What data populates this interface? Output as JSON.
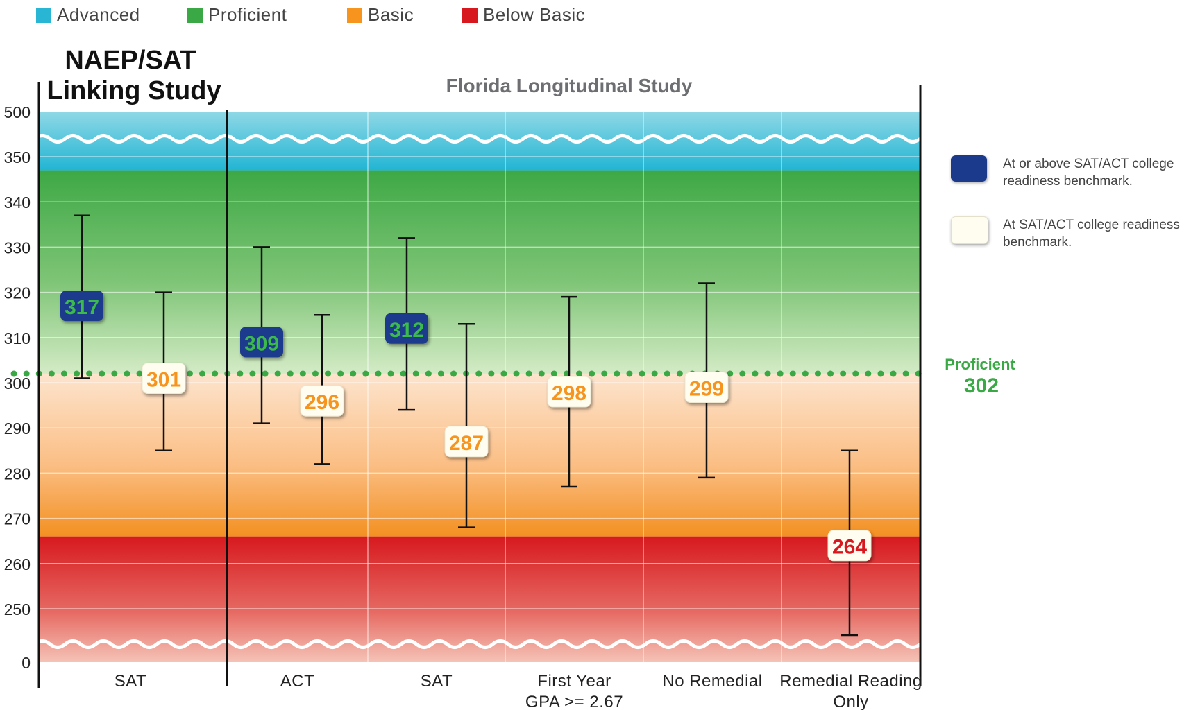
{
  "category_legend": [
    {
      "label": "Advanced",
      "color": "#29b6d4"
    },
    {
      "label": "Proficient",
      "color": "#3aa845"
    },
    {
      "label": "Basic",
      "color": "#f7941d"
    },
    {
      "label": "Below Basic",
      "color": "#d7191f"
    }
  ],
  "marker_legend": [
    {
      "label": "At or above SAT/ACT college readiness benchmark.",
      "color": "#1b3a8c",
      "icon": "navy-rounded-square"
    },
    {
      "label": "At SAT/ACT college readiness benchmark.",
      "color": "#fffdf0",
      "icon": "cream-rounded-square"
    }
  ],
  "chart_data": {
    "type": "errorbar",
    "panels": [
      {
        "title": "NAEP/SAT Linking Study",
        "categories": [
          "SAT"
        ]
      },
      {
        "title": "Florida Longitudinal Study",
        "categories": [
          "ACT",
          "SAT",
          "First Year GPA >= 2.67",
          "No Remedial",
          "Remedial Reading Only"
        ]
      }
    ],
    "category_labels": [
      {
        "line1": "SAT",
        "line2": ""
      },
      {
        "line1": "ACT",
        "line2": ""
      },
      {
        "line1": "SAT",
        "line2": ""
      },
      {
        "line1": "First Year",
        "line2": "GPA >= 2.67"
      },
      {
        "line1": "No Remedial",
        "line2": ""
      },
      {
        "line1": "Remedial Reading",
        "line2": "Only"
      }
    ],
    "y_ticks": [
      "500",
      "350",
      "340",
      "330",
      "320",
      "310",
      "300",
      "290",
      "280",
      "270",
      "260",
      "250",
      "0"
    ],
    "y_axis_break": true,
    "y_range": [
      245,
      355
    ],
    "points": [
      {
        "category": 0,
        "offset": -1,
        "value": 317,
        "low": 301,
        "high": 337,
        "marker": "above"
      },
      {
        "category": 0,
        "offset": 1,
        "value": 301,
        "low": 285,
        "high": 320,
        "marker": "at"
      },
      {
        "category": 1,
        "offset": -1,
        "value": 309,
        "low": 291,
        "high": 330,
        "marker": "above"
      },
      {
        "category": 1,
        "offset": 1,
        "value": 296,
        "low": 282,
        "high": 315,
        "marker": "at"
      },
      {
        "category": 2,
        "offset": -1,
        "value": 312,
        "low": 294,
        "high": 332,
        "marker": "above"
      },
      {
        "category": 2,
        "offset": 1,
        "value": 287,
        "low": 268,
        "high": 313,
        "marker": "at"
      },
      {
        "category": 3,
        "offset": 0,
        "value": 298,
        "low": 277,
        "high": 319,
        "marker": "at"
      },
      {
        "category": 4,
        "offset": 0,
        "value": 299,
        "low": 279,
        "high": 322,
        "marker": "at"
      },
      {
        "category": 5,
        "offset": 0,
        "value": 264,
        "low": 246,
        "high": 285,
        "marker": "at"
      }
    ],
    "bands": [
      {
        "name": "Advanced",
        "from": 347,
        "to": 500
      },
      {
        "name": "Proficient",
        "from": 302,
        "to": 347
      },
      {
        "name": "Basic",
        "from": 266,
        "to": 302
      },
      {
        "name": "Below Basic",
        "from": 0,
        "to": 266
      }
    ],
    "reference_line": {
      "label": "Proficient",
      "value": 302
    },
    "colors": {
      "above_fill": "#1b3a8c",
      "above_text": "#3dbb4a",
      "at_fill": "#fffdf0",
      "at_text_basic": "#f7941d",
      "at_text_below": "#d7191f",
      "reference": "#3aa845"
    }
  }
}
